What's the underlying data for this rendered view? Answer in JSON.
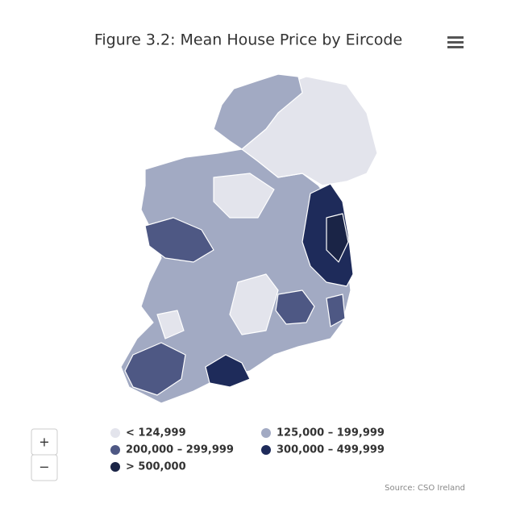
{
  "title": "Figure 3.2: Mean House Price by Eircode",
  "legend": [
    {
      "label": "< 124,999",
      "color": "#e3e4ec"
    },
    {
      "label": "125,000 – 199,999",
      "color": "#a2aac3"
    },
    {
      "label": "200,000 – 299,999",
      "color": "#4e5884"
    },
    {
      "label": "300,000 – 499,999",
      "color": "#1e2b5a"
    },
    {
      "label": "> 500,000",
      "color": "#1a2446"
    }
  ],
  "zoom": {
    "in": "+",
    "out": "−"
  },
  "source": "Source: CSO Ireland"
}
